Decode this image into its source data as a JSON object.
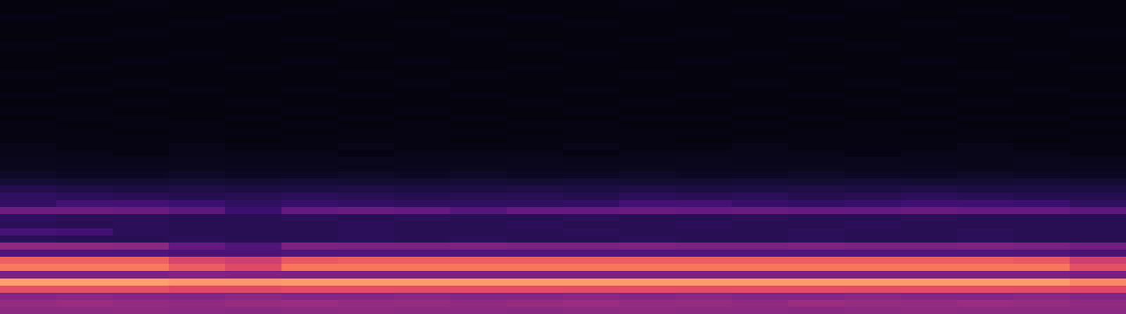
{
  "chart_data": {
    "type": "heatmap",
    "tick_labels": false,
    "zlim": [
      0,
      100
    ],
    "cells": [
      [
        2,
        2,
        3,
        2,
        2,
        2,
        3,
        2,
        2,
        2,
        2,
        3,
        2,
        2,
        2,
        3,
        2,
        2,
        2,
        2
      ],
      [
        2,
        3,
        2,
        2,
        2,
        3,
        2,
        2,
        3,
        2,
        2,
        2,
        2,
        3,
        2,
        2,
        2,
        3,
        2,
        2
      ],
      [
        3,
        2,
        2,
        2,
        3,
        2,
        2,
        2,
        2,
        3,
        2,
        2,
        2,
        2,
        3,
        2,
        2,
        2,
        3,
        2
      ],
      [
        2,
        2,
        2,
        3,
        2,
        2,
        2,
        3,
        2,
        2,
        3,
        2,
        2,
        2,
        2,
        2,
        3,
        2,
        2,
        2
      ],
      [
        2,
        2,
        3,
        2,
        2,
        2,
        2,
        2,
        3,
        2,
        2,
        2,
        3,
        2,
        2,
        2,
        2,
        2,
        2,
        3
      ],
      [
        2,
        3,
        2,
        2,
        2,
        3,
        2,
        2,
        2,
        2,
        2,
        3,
        2,
        2,
        3,
        2,
        2,
        3,
        2,
        2
      ],
      [
        3,
        2,
        2,
        2,
        2,
        2,
        3,
        2,
        2,
        3,
        2,
        2,
        2,
        2,
        2,
        3,
        2,
        2,
        2,
        2
      ],
      [
        2,
        2,
        2,
        3,
        2,
        2,
        2,
        2,
        2,
        2,
        3,
        2,
        2,
        3,
        2,
        2,
        2,
        2,
        3,
        2
      ],
      [
        2,
        2,
        3,
        2,
        2,
        3,
        2,
        3,
        2,
        2,
        2,
        2,
        3,
        2,
        2,
        2,
        3,
        2,
        2,
        2
      ],
      [
        2,
        3,
        2,
        2,
        3,
        2,
        2,
        2,
        2,
        3,
        2,
        2,
        2,
        2,
        3,
        2,
        2,
        2,
        2,
        3
      ],
      [
        3,
        2,
        2,
        2,
        2,
        2,
        3,
        2,
        3,
        2,
        2,
        3,
        2,
        2,
        2,
        2,
        2,
        3,
        2,
        2
      ],
      [
        2,
        2,
        3,
        2,
        2,
        2,
        2,
        3,
        2,
        2,
        2,
        2,
        2,
        3,
        2,
        3,
        2,
        2,
        2,
        2
      ],
      [
        2,
        3,
        2,
        3,
        2,
        3,
        2,
        2,
        2,
        2,
        3,
        2,
        2,
        2,
        2,
        2,
        3,
        2,
        3,
        2
      ],
      [
        3,
        2,
        2,
        2,
        2,
        2,
        3,
        2,
        3,
        2,
        2,
        2,
        3,
        2,
        3,
        2,
        2,
        2,
        2,
        3
      ],
      [
        2,
        2,
        3,
        2,
        3,
        2,
        2,
        2,
        2,
        3,
        2,
        3,
        2,
        2,
        2,
        3,
        2,
        3,
        2,
        2
      ],
      [
        3,
        3,
        2,
        2,
        2,
        3,
        2,
        3,
        2,
        2,
        3,
        2,
        2,
        3,
        2,
        2,
        3,
        2,
        2,
        3
      ],
      [
        2,
        3,
        3,
        2,
        3,
        2,
        3,
        2,
        3,
        2,
        2,
        3,
        3,
        2,
        3,
        2,
        2,
        3,
        3,
        2
      ],
      [
        3,
        2,
        3,
        3,
        2,
        3,
        2,
        3,
        2,
        3,
        3,
        2,
        2,
        3,
        2,
        3,
        3,
        2,
        2,
        3
      ],
      [
        3,
        3,
        2,
        3,
        3,
        2,
        3,
        3,
        3,
        2,
        3,
        3,
        3,
        2,
        3,
        3,
        2,
        3,
        3,
        2
      ],
      [
        3,
        3,
        3,
        3,
        2,
        3,
        3,
        3,
        2,
        3,
        3,
        3,
        2,
        3,
        3,
        3,
        3,
        3,
        2,
        3
      ],
      [
        4,
        3,
        3,
        4,
        3,
        3,
        4,
        3,
        3,
        3,
        4,
        3,
        3,
        4,
        3,
        3,
        3,
        4,
        3,
        3
      ],
      [
        4,
        4,
        3,
        4,
        4,
        4,
        3,
        4,
        4,
        4,
        3,
        4,
        4,
        4,
        4,
        3,
        4,
        4,
        4,
        3
      ],
      [
        5,
        4,
        4,
        5,
        4,
        4,
        5,
        4,
        4,
        5,
        4,
        4,
        5,
        4,
        4,
        5,
        4,
        4,
        5,
        4
      ],
      [
        5,
        5,
        5,
        5,
        5,
        5,
        4,
        5,
        5,
        5,
        5,
        5,
        5,
        5,
        5,
        5,
        5,
        4,
        5,
        5
      ],
      [
        7,
        6,
        6,
        7,
        6,
        6,
        7,
        6,
        7,
        6,
        6,
        7,
        6,
        6,
        7,
        6,
        6,
        7,
        6,
        6
      ],
      [
        10,
        9,
        9,
        10,
        9,
        10,
        9,
        9,
        10,
        9,
        10,
        9,
        9,
        10,
        9,
        10,
        9,
        9,
        10,
        9
      ],
      [
        14,
        13,
        12,
        13,
        12,
        12,
        13,
        12,
        12,
        13,
        12,
        13,
        12,
        12,
        13,
        12,
        13,
        12,
        12,
        12
      ],
      [
        17,
        16,
        15,
        14,
        15,
        16,
        15,
        14,
        15,
        15,
        14,
        16,
        15,
        16,
        14,
        15,
        16,
        15,
        14,
        14
      ],
      [
        18,
        22,
        22,
        20,
        17,
        19,
        18,
        17,
        17,
        17,
        18,
        22,
        22,
        19,
        18,
        19,
        21,
        21,
        20,
        17
      ],
      [
        32,
        32,
        31,
        28,
        20,
        30,
        31,
        30,
        26,
        30,
        30,
        31,
        30,
        31,
        30,
        30,
        31,
        30,
        30,
        28
      ],
      [
        17,
        16,
        16,
        15,
        15,
        16,
        15,
        16,
        15,
        15,
        16,
        15,
        15,
        16,
        15,
        15,
        16,
        15,
        15,
        15
      ],
      [
        16,
        15,
        16,
        15,
        15,
        15,
        16,
        15,
        15,
        16,
        15,
        15,
        16,
        15,
        15,
        16,
        15,
        15,
        15,
        15
      ],
      [
        23,
        22,
        16,
        15,
        15,
        15,
        16,
        15,
        15,
        15,
        16,
        15,
        15,
        15,
        16,
        15,
        15,
        16,
        15,
        15
      ],
      [
        16,
        15,
        15,
        16,
        15,
        15,
        16,
        15,
        16,
        15,
        15,
        16,
        15,
        15,
        16,
        15,
        15,
        16,
        15,
        15
      ],
      [
        40,
        40,
        39,
        30,
        25,
        36,
        35,
        35,
        36,
        35,
        35,
        36,
        35,
        35,
        36,
        35,
        35,
        36,
        35,
        33
      ],
      [
        25,
        25,
        25,
        24,
        24,
        25,
        25,
        25,
        25,
        25,
        25,
        25,
        25,
        25,
        25,
        25,
        25,
        25,
        25,
        24
      ],
      [
        66,
        66,
        66,
        58,
        55,
        64,
        65,
        65,
        65,
        65,
        65,
        65,
        65,
        65,
        65,
        65,
        65,
        65,
        64,
        55
      ],
      [
        72,
        72,
        72,
        65,
        60,
        71,
        71,
        71,
        71,
        71,
        71,
        71,
        71,
        71,
        71,
        71,
        71,
        71,
        71,
        62
      ],
      [
        35,
        35,
        35,
        37,
        36,
        35,
        35,
        35,
        35,
        35,
        35,
        35,
        35,
        35,
        35,
        35,
        35,
        35,
        35,
        34
      ],
      [
        80,
        80,
        80,
        78,
        78,
        79,
        79,
        79,
        79,
        79,
        79,
        79,
        79,
        79,
        79,
        79,
        79,
        79,
        79,
        75
      ],
      [
        62,
        62,
        62,
        60,
        60,
        61,
        61,
        61,
        61,
        61,
        61,
        61,
        61,
        61,
        61,
        61,
        61,
        61,
        61,
        60
      ],
      [
        38,
        39,
        38,
        38,
        39,
        38,
        38,
        39,
        38,
        38,
        39,
        38,
        39,
        38,
        38,
        39,
        38,
        38,
        39,
        38
      ],
      [
        42,
        43,
        42,
        41,
        42,
        43,
        42,
        42,
        41,
        42,
        43,
        42,
        42,
        41,
        43,
        42,
        42,
        43,
        42,
        41
      ],
      [
        40,
        40,
        41,
        40,
        39,
        40,
        41,
        40,
        40,
        39,
        40,
        41,
        40,
        40,
        39,
        40,
        41,
        40,
        40,
        40
      ]
    ]
  }
}
